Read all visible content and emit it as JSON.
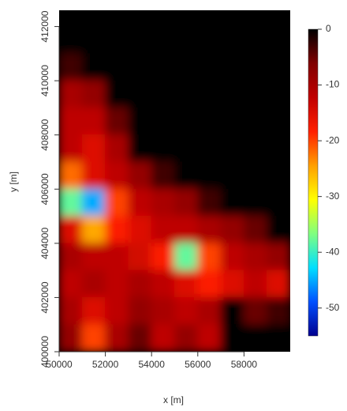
{
  "chart_data": {
    "type": "heatmap",
    "xlabel": "x [m]",
    "ylabel": "y [m]",
    "x": [
      50500,
      51500,
      52500,
      53500,
      54500,
      55500,
      56500,
      57500,
      58500,
      59500
    ],
    "y": [
      412500,
      411500,
      410500,
      409500,
      408500,
      407500,
      406500,
      405500,
      404500,
      403500,
      402500,
      401500,
      400500
    ],
    "values": [
      [
        0,
        0,
        0,
        0,
        0,
        0,
        0,
        0,
        0,
        0
      ],
      [
        0,
        0,
        0,
        0,
        0,
        0,
        0,
        0,
        0,
        0
      ],
      [
        -3,
        0,
        0,
        0,
        0,
        0,
        0,
        0,
        0,
        0
      ],
      [
        -10,
        -8,
        0,
        0,
        0,
        0,
        0,
        0,
        0,
        0
      ],
      [
        -12,
        -12,
        -5,
        0,
        0,
        0,
        0,
        0,
        0,
        0
      ],
      [
        -12,
        -15,
        -10,
        0,
        0,
        0,
        0,
        0,
        0,
        0
      ],
      [
        -22,
        -15,
        -12,
        -8,
        -3,
        0,
        0,
        0,
        0,
        0
      ],
      [
        -38,
        -45,
        -20,
        -12,
        -10,
        -8,
        -3,
        0,
        0,
        0
      ],
      [
        -15,
        -25,
        -18,
        -15,
        -12,
        -12,
        -10,
        -8,
        -5,
        0
      ],
      [
        -10,
        -12,
        -12,
        -14,
        -18,
        -38,
        -20,
        -12,
        -10,
        -8
      ],
      [
        -12,
        -10,
        -12,
        -10,
        -12,
        -15,
        -18,
        -15,
        -12,
        -15
      ],
      [
        -10,
        -15,
        -12,
        -8,
        -10,
        -12,
        -10,
        0,
        -5,
        -3
      ],
      [
        -8,
        -20,
        -10,
        -5,
        -12,
        -8,
        -12,
        0,
        0,
        0
      ]
    ],
    "xlim": [
      50000,
      60000
    ],
    "ylim": [
      400000,
      412600
    ],
    "xticks": [
      50000,
      52000,
      54000,
      56000,
      58000
    ],
    "yticks": [
      400000,
      402000,
      404000,
      406000,
      408000,
      410000,
      412000
    ],
    "zlim": [
      -55,
      0
    ],
    "zticks": [
      0,
      -10,
      -20,
      -30,
      -40,
      -50
    ],
    "colors": [
      "#00008f",
      "#0050ff",
      "#00dfff",
      "#80ff80",
      "#ffff00",
      "#ff9f00",
      "#ff2000",
      "#c00000",
      "#800000",
      "#000000"
    ]
  }
}
